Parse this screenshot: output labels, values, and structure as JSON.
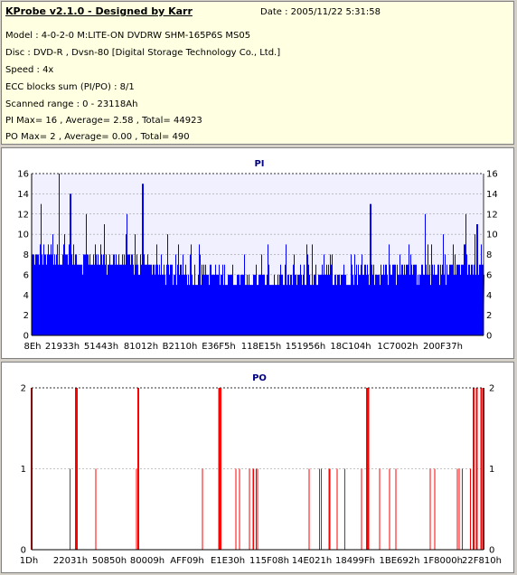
{
  "header": {
    "title": "KProbe v2.1.0 - Designed by Karr",
    "date": "Date : 2005/11/22 5:31:58",
    "lines": [
      "Model : 4-0-2-0 M:LITE-ON DVDRW SHM-165P6S MS05",
      "Disc : DVD-R , Dvsn-80 [Digital Storage Technology Co., Ltd.]",
      "Speed : 4x",
      "ECC blocks sum (PI/PO) : 8/1",
      "Scanned range : 0 - 23118Ah",
      "PI Max= 16 , Average= 2.58 , Total= 44923",
      "PO Max= 2 , Average= 0.00 , Total= 490"
    ]
  },
  "colors": {
    "pi": "#0000ff",
    "po": "#ff0000",
    "bg": "#f0f0ff"
  },
  "chart_data": [
    {
      "type": "bar",
      "title": "PI",
      "ylim": [
        0,
        16
      ],
      "yticks": [
        0,
        2,
        4,
        6,
        8,
        10,
        12,
        14,
        16
      ],
      "xlim": [
        0,
        142730
      ],
      "xticks": [
        {
          "label": "8Eh",
          "x": 142
        },
        {
          "label": "21933h",
          "x": 137523
        },
        {
          "label": "51443h",
          "x": 332867
        },
        {
          "label": "81012h",
          "x": 528402
        },
        {
          "label": "B2110h",
          "x": 729360
        },
        {
          "label": "E36F5h",
          "x": 931573
        },
        {
          "label": "118E15h",
          "x": 1150485
        },
        {
          "label": "151956h",
          "x": 1382742
        },
        {
          "label": "18C104h",
          "x": 1622276
        },
        {
          "label": "1C7002h",
          "x": 1863682
        },
        {
          "label": "200F37h",
          "x": 2101047
        }
      ],
      "profile": [
        [
          0,
          7.5
        ],
        [
          0.05,
          7.8
        ],
        [
          0.1,
          7.5
        ],
        [
          0.15,
          7.3
        ],
        [
          0.2,
          7.2
        ],
        [
          0.25,
          6.8
        ],
        [
          0.3,
          6.2
        ],
        [
          0.35,
          6.0
        ],
        [
          0.4,
          5.8
        ],
        [
          0.45,
          5.6
        ],
        [
          0.5,
          5.3
        ],
        [
          0.55,
          5.4
        ],
        [
          0.6,
          5.5
        ],
        [
          0.65,
          5.7
        ],
        [
          0.7,
          5.9
        ],
        [
          0.75,
          6.0
        ],
        [
          0.8,
          6.2
        ],
        [
          0.85,
          6.3
        ],
        [
          0.9,
          6.3
        ],
        [
          0.95,
          6.5
        ],
        [
          1.0,
          6.5
        ]
      ],
      "peaks": [
        {
          "f": 0.02,
          "v": 13
        },
        {
          "f": 0.06,
          "v": 16
        },
        {
          "f": 0.085,
          "v": 14
        },
        {
          "f": 0.12,
          "v": 12
        },
        {
          "f": 0.16,
          "v": 11
        },
        {
          "f": 0.21,
          "v": 12
        },
        {
          "f": 0.245,
          "v": 15
        },
        {
          "f": 0.3,
          "v": 10
        },
        {
          "f": 0.37,
          "v": 9
        },
        {
          "f": 0.47,
          "v": 8
        },
        {
          "f": 0.58,
          "v": 8
        },
        {
          "f": 0.66,
          "v": 8
        },
        {
          "f": 0.749,
          "v": 13
        },
        {
          "f": 0.79,
          "v": 9
        },
        {
          "f": 0.87,
          "v": 12
        },
        {
          "f": 0.91,
          "v": 10
        },
        {
          "f": 0.96,
          "v": 12
        },
        {
          "f": 0.985,
          "v": 11
        }
      ]
    },
    {
      "type": "bar",
      "title": "PO",
      "ylim": [
        0,
        2
      ],
      "yticks": [
        0,
        1,
        2
      ],
      "xticks": [
        {
          "label": "1Dh",
          "x": 29
        },
        {
          "label": "22031h",
          "x": 139313
        },
        {
          "label": "50850h",
          "x": 329808
        },
        {
          "label": "80009h",
          "x": 524297
        },
        {
          "label": "AFF09h",
          "x": 720649
        },
        {
          "label": "E1E30h",
          "x": 925232
        },
        {
          "label": "115F08h",
          "x": 1138440
        },
        {
          "label": "14E021h",
          "x": 1368097
        },
        {
          "label": "18499Fh",
          "x": 1591711
        },
        {
          "label": "1BE692h",
          "x": 1828498
        },
        {
          "label": "1F8000h",
          "x": 2064384
        },
        {
          "label": "22F810h",
          "x": 2291728
        }
      ],
      "events": [
        {
          "f": 0.0,
          "v": 2
        },
        {
          "f": 0.085,
          "v": 1
        },
        {
          "f": 0.098,
          "v": 2
        },
        {
          "f": 0.1,
          "v": 2
        },
        {
          "f": 0.142,
          "v": 1
        },
        {
          "f": 0.232,
          "v": 1
        },
        {
          "f": 0.236,
          "v": 2
        },
        {
          "f": 0.378,
          "v": 1
        },
        {
          "f": 0.415,
          "v": 2
        },
        {
          "f": 0.418,
          "v": 2
        },
        {
          "f": 0.452,
          "v": 1
        },
        {
          "f": 0.46,
          "v": 1
        },
        {
          "f": 0.482,
          "v": 1
        },
        {
          "f": 0.49,
          "v": 1
        },
        {
          "f": 0.491,
          "v": 1
        },
        {
          "f": 0.497,
          "v": 1
        },
        {
          "f": 0.5,
          "v": 1
        },
        {
          "f": 0.614,
          "v": 1
        },
        {
          "f": 0.637,
          "v": 1
        },
        {
          "f": 0.641,
          "v": 1
        },
        {
          "f": 0.658,
          "v": 1
        },
        {
          "f": 0.66,
          "v": 1
        },
        {
          "f": 0.676,
          "v": 1
        },
        {
          "f": 0.693,
          "v": 1
        },
        {
          "f": 0.73,
          "v": 1
        },
        {
          "f": 0.741,
          "v": 1
        },
        {
          "f": 0.742,
          "v": 2
        },
        {
          "f": 0.745,
          "v": 2
        },
        {
          "f": 0.77,
          "v": 1
        },
        {
          "f": 0.792,
          "v": 1
        },
        {
          "f": 0.806,
          "v": 1
        },
        {
          "f": 0.882,
          "v": 1
        },
        {
          "f": 0.892,
          "v": 1
        },
        {
          "f": 0.942,
          "v": 1
        },
        {
          "f": 0.946,
          "v": 1
        },
        {
          "f": 0.953,
          "v": 1
        },
        {
          "f": 0.971,
          "v": 1
        },
        {
          "f": 0.978,
          "v": 2
        },
        {
          "f": 0.985,
          "v": 2
        },
        {
          "f": 0.995,
          "v": 2
        },
        {
          "f": 1.0,
          "v": 2
        }
      ]
    }
  ]
}
